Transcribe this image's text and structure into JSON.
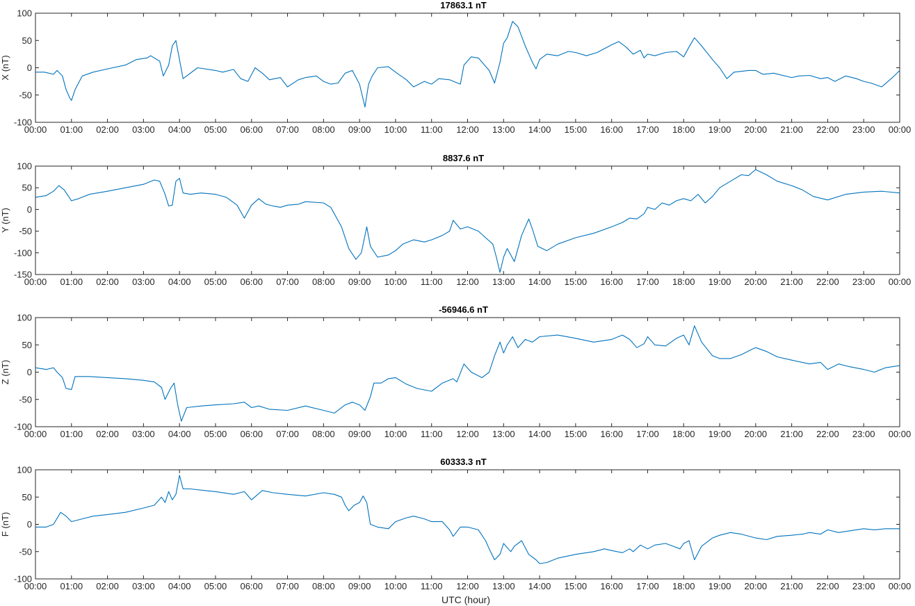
{
  "figure": {
    "xlabel": "UTC (hour)",
    "line_color": "#0072BD"
  },
  "chart_data": [
    {
      "type": "line",
      "title": "17863.1 nT",
      "xlabel": "",
      "ylabel": "X (nT)",
      "xlim": [
        0,
        24
      ],
      "ylim": [
        -100,
        100
      ],
      "xticks": [
        0,
        1,
        2,
        3,
        4,
        5,
        6,
        7,
        8,
        9,
        10,
        11,
        12,
        13,
        14,
        15,
        16,
        17,
        18,
        19,
        20,
        21,
        22,
        23,
        24
      ],
      "xtick_labels": [
        "00:00",
        "01:00",
        "02:00",
        "03:00",
        "04:00",
        "05:00",
        "06:00",
        "07:00",
        "08:00",
        "09:00",
        "10:00",
        "11:00",
        "12:00",
        "13:00",
        "14:00",
        "15:00",
        "16:00",
        "17:00",
        "18:00",
        "19:00",
        "20:00",
        "21:00",
        "22:00",
        "23:00",
        "00:00"
      ],
      "yticks": [
        -100,
        -50,
        0,
        50,
        100
      ],
      "ytick_labels": [
        "-100",
        "-50",
        "0",
        "50",
        "100"
      ],
      "series": [
        {
          "x": [
            0,
            0.25,
            0.5,
            0.6,
            0.75,
            0.85,
            0.95,
            1.0,
            1.1,
            1.3,
            1.6,
            2.0,
            2.5,
            2.8,
            3.1,
            3.2,
            3.45,
            3.55,
            3.7,
            3.8,
            3.9,
            4.1,
            4.5,
            5.0,
            5.2,
            5.5,
            5.7,
            5.9,
            6.1,
            6.3,
            6.5,
            6.8,
            7.0,
            7.3,
            7.5,
            7.8,
            8.0,
            8.2,
            8.4,
            8.6,
            8.8,
            9.0,
            9.15,
            9.25,
            9.35,
            9.5,
            9.8,
            10.0,
            10.3,
            10.5,
            10.8,
            11.0,
            11.2,
            11.5,
            11.8,
            11.9,
            12.1,
            12.3,
            12.6,
            12.75,
            12.9,
            13.0,
            13.1,
            13.25,
            13.4,
            13.6,
            13.8,
            13.9,
            14.0,
            14.2,
            14.5,
            14.8,
            15.0,
            15.3,
            15.6,
            15.8,
            16.0,
            16.2,
            16.4,
            16.6,
            16.8,
            16.9,
            17.0,
            17.2,
            17.5,
            17.8,
            18.0,
            18.15,
            18.3,
            18.5,
            18.8,
            19.0,
            19.2,
            19.4,
            19.8,
            20.0,
            20.2,
            20.5,
            21.0,
            21.2,
            21.5,
            21.8,
            22.0,
            22.2,
            22.5,
            22.8,
            23.0,
            23.2,
            23.5,
            23.8,
            24
          ],
          "y": [
            -8,
            -8,
            -12,
            -5,
            -15,
            -40,
            -55,
            -60,
            -40,
            -15,
            -8,
            -2,
            5,
            15,
            18,
            22,
            12,
            -15,
            5,
            40,
            50,
            -20,
            0,
            -5,
            -8,
            -3,
            -20,
            -25,
            0,
            -10,
            -22,
            -18,
            -35,
            -22,
            -18,
            -15,
            -25,
            -30,
            -28,
            -10,
            -5,
            -30,
            -72,
            -30,
            -15,
            0,
            2,
            -8,
            -22,
            -35,
            -25,
            -30,
            -20,
            -22,
            -30,
            5,
            20,
            18,
            -5,
            -28,
            10,
            45,
            55,
            85,
            75,
            40,
            10,
            -2,
            15,
            25,
            22,
            30,
            28,
            22,
            28,
            35,
            42,
            48,
            38,
            25,
            32,
            18,
            25,
            22,
            28,
            30,
            20,
            38,
            55,
            40,
            15,
            0,
            -20,
            -8,
            -5,
            -5,
            -12,
            -10,
            -18,
            -15,
            -14,
            -20,
            -18,
            -25,
            -15,
            -20,
            -25,
            -28,
            -35,
            -18,
            -5
          ]
        }
      ]
    },
    {
      "type": "line",
      "title": "8837.6 nT",
      "xlabel": "",
      "ylabel": "Y (nT)",
      "xlim": [
        0,
        24
      ],
      "ylim": [
        -150,
        100
      ],
      "xticks": [
        0,
        1,
        2,
        3,
        4,
        5,
        6,
        7,
        8,
        9,
        10,
        11,
        12,
        13,
        14,
        15,
        16,
        17,
        18,
        19,
        20,
        21,
        22,
        23,
        24
      ],
      "xtick_labels": [
        "00:00",
        "01:00",
        "02:00",
        "03:00",
        "04:00",
        "05:00",
        "06:00",
        "07:00",
        "08:00",
        "09:00",
        "10:00",
        "11:00",
        "12:00",
        "13:00",
        "14:00",
        "15:00",
        "16:00",
        "17:00",
        "18:00",
        "19:00",
        "20:00",
        "21:00",
        "22:00",
        "23:00",
        "00:00"
      ],
      "yticks": [
        -150,
        -100,
        -50,
        0,
        50,
        100
      ],
      "ytick_labels": [
        "-150",
        "-100",
        "-50",
        "0",
        "50",
        "100"
      ],
      "series": [
        {
          "x": [
            0,
            0.3,
            0.5,
            0.65,
            0.8,
            1.0,
            1.2,
            1.5,
            2.0,
            2.5,
            3.0,
            3.3,
            3.45,
            3.6,
            3.7,
            3.8,
            3.9,
            4.0,
            4.1,
            4.3,
            4.6,
            5.0,
            5.3,
            5.6,
            5.8,
            6.0,
            6.2,
            6.4,
            6.6,
            6.8,
            7.0,
            7.3,
            7.5,
            8.0,
            8.2,
            8.5,
            8.7,
            8.9,
            9.05,
            9.2,
            9.3,
            9.5,
            9.8,
            10.0,
            10.2,
            10.5,
            10.8,
            11.0,
            11.3,
            11.5,
            11.6,
            11.8,
            12.0,
            12.3,
            12.5,
            12.7,
            12.8,
            12.9,
            13.0,
            13.1,
            13.2,
            13.3,
            13.5,
            13.7,
            13.8,
            13.95,
            14.2,
            14.5,
            15.0,
            15.5,
            16.0,
            16.3,
            16.5,
            16.7,
            16.9,
            17.0,
            17.2,
            17.4,
            17.6,
            17.8,
            18.0,
            18.2,
            18.4,
            18.6,
            18.8,
            19.0,
            19.3,
            19.6,
            19.8,
            20.0,
            20.3,
            20.6,
            21.0,
            21.3,
            21.6,
            22.0,
            22.5,
            23.0,
            23.5,
            24
          ],
          "y": [
            28,
            32,
            42,
            55,
            45,
            20,
            25,
            35,
            42,
            50,
            58,
            68,
            65,
            35,
            8,
            10,
            65,
            72,
            38,
            35,
            38,
            35,
            28,
            10,
            -20,
            10,
            25,
            12,
            8,
            5,
            10,
            12,
            18,
            15,
            5,
            -40,
            -90,
            -115,
            -100,
            -40,
            -85,
            -110,
            -105,
            -95,
            -80,
            -70,
            -75,
            -70,
            -60,
            -50,
            -25,
            -45,
            -40,
            -50,
            -65,
            -80,
            -110,
            -145,
            -110,
            -90,
            -105,
            -120,
            -60,
            -22,
            -45,
            -85,
            -95,
            -80,
            -65,
            -55,
            -40,
            -30,
            -20,
            -22,
            -10,
            5,
            0,
            15,
            10,
            20,
            25,
            20,
            35,
            15,
            30,
            50,
            65,
            80,
            78,
            92,
            80,
            65,
            55,
            45,
            30,
            22,
            35,
            40,
            42,
            38
          ]
        }
      ]
    },
    {
      "type": "line",
      "title": "-56946.6 nT",
      "xlabel": "",
      "ylabel": "Z (nT)",
      "xlim": [
        0,
        24
      ],
      "ylim": [
        -100,
        100
      ],
      "xticks": [
        0,
        1,
        2,
        3,
        4,
        5,
        6,
        7,
        8,
        9,
        10,
        11,
        12,
        13,
        14,
        15,
        16,
        17,
        18,
        19,
        20,
        21,
        22,
        23,
        24
      ],
      "xtick_labels": [
        "00:00",
        "01:00",
        "02:00",
        "03:00",
        "04:00",
        "05:00",
        "06:00",
        "07:00",
        "08:00",
        "09:00",
        "10:00",
        "11:00",
        "12:00",
        "13:00",
        "14:00",
        "15:00",
        "16:00",
        "17:00",
        "18:00",
        "19:00",
        "20:00",
        "21:00",
        "22:00",
        "23:00",
        "00:00"
      ],
      "yticks": [
        -100,
        -50,
        0,
        50,
        100
      ],
      "ytick_labels": [
        "-100",
        "-50",
        "0",
        "50",
        "100"
      ],
      "series": [
        {
          "x": [
            0,
            0.3,
            0.5,
            0.6,
            0.75,
            0.85,
            1.0,
            1.1,
            1.5,
            2.0,
            2.5,
            3.0,
            3.3,
            3.5,
            3.6,
            3.75,
            3.85,
            3.95,
            4.05,
            4.2,
            4.6,
            5.0,
            5.5,
            5.8,
            6.0,
            6.2,
            6.5,
            7.0,
            7.5,
            8.0,
            8.3,
            8.6,
            8.8,
            9.0,
            9.15,
            9.3,
            9.4,
            9.6,
            9.8,
            10.0,
            10.3,
            10.6,
            11.0,
            11.3,
            11.6,
            11.7,
            11.9,
            12.1,
            12.4,
            12.6,
            12.75,
            12.9,
            13.0,
            13.1,
            13.25,
            13.4,
            13.6,
            13.8,
            14.0,
            14.5,
            15.0,
            15.5,
            16.0,
            16.3,
            16.5,
            16.7,
            16.9,
            17.0,
            17.2,
            17.5,
            17.8,
            18.0,
            18.15,
            18.3,
            18.5,
            18.8,
            19.0,
            19.3,
            19.6,
            19.9,
            20.0,
            20.3,
            20.6,
            21.0,
            21.5,
            21.8,
            22.0,
            22.3,
            22.6,
            23.0,
            23.3,
            23.6,
            24
          ],
          "y": [
            8,
            5,
            8,
            0,
            -10,
            -30,
            -32,
            -8,
            -8,
            -10,
            -12,
            -15,
            -18,
            -28,
            -50,
            -30,
            -20,
            -60,
            -90,
            -65,
            -62,
            -60,
            -58,
            -55,
            -65,
            -62,
            -68,
            -70,
            -62,
            -70,
            -75,
            -60,
            -55,
            -60,
            -70,
            -45,
            -20,
            -20,
            -12,
            -10,
            -22,
            -30,
            -35,
            -20,
            -12,
            -18,
            15,
            0,
            -10,
            0,
            30,
            55,
            35,
            50,
            65,
            45,
            60,
            55,
            65,
            68,
            62,
            55,
            60,
            68,
            60,
            45,
            52,
            65,
            50,
            48,
            62,
            68,
            50,
            85,
            55,
            30,
            25,
            25,
            32,
            42,
            45,
            38,
            28,
            22,
            15,
            18,
            5,
            15,
            10,
            5,
            0,
            8,
            12
          ]
        }
      ]
    },
    {
      "type": "line",
      "title": "60333.3 nT",
      "xlabel": "UTC (hour)",
      "ylabel": "F (nT)",
      "xlim": [
        0,
        24
      ],
      "ylim": [
        -100,
        100
      ],
      "xticks": [
        0,
        1,
        2,
        3,
        4,
        5,
        6,
        7,
        8,
        9,
        10,
        11,
        12,
        13,
        14,
        15,
        16,
        17,
        18,
        19,
        20,
        21,
        22,
        23,
        24
      ],
      "xtick_labels": [
        "00:00",
        "01:00",
        "02:00",
        "03:00",
        "04:00",
        "05:00",
        "06:00",
        "07:00",
        "08:00",
        "09:00",
        "10:00",
        "11:00",
        "12:00",
        "13:00",
        "14:00",
        "15:00",
        "16:00",
        "17:00",
        "18:00",
        "19:00",
        "20:00",
        "21:00",
        "22:00",
        "23:00",
        "00:00"
      ],
      "yticks": [
        -100,
        -50,
        0,
        50,
        100
      ],
      "ytick_labels": [
        "-100",
        "-50",
        "0",
        "50",
        "100"
      ],
      "series": [
        {
          "x": [
            0,
            0.3,
            0.5,
            0.7,
            0.85,
            1.0,
            1.3,
            1.6,
            2.0,
            2.5,
            3.0,
            3.3,
            3.5,
            3.6,
            3.7,
            3.8,
            3.9,
            4.0,
            4.1,
            4.3,
            4.7,
            5.0,
            5.5,
            5.8,
            6.0,
            6.3,
            6.6,
            7.0,
            7.5,
            8.0,
            8.3,
            8.5,
            8.6,
            8.7,
            8.85,
            9.0,
            9.1,
            9.2,
            9.3,
            9.5,
            9.8,
            10.0,
            10.3,
            10.5,
            10.8,
            11.0,
            11.3,
            11.5,
            11.6,
            11.8,
            12.0,
            12.3,
            12.5,
            12.6,
            12.75,
            12.9,
            13.0,
            13.2,
            13.3,
            13.5,
            13.7,
            13.9,
            14.0,
            14.2,
            14.5,
            15.0,
            15.5,
            15.8,
            16.0,
            16.3,
            16.5,
            16.6,
            16.8,
            17.0,
            17.2,
            17.5,
            17.7,
            17.9,
            18.0,
            18.15,
            18.3,
            18.5,
            18.8,
            19.0,
            19.3,
            19.6,
            20.0,
            20.3,
            20.6,
            21.0,
            21.3,
            21.5,
            21.8,
            22.0,
            22.3,
            22.6,
            23.0,
            23.3,
            23.6,
            24
          ],
          "y": [
            -5,
            -5,
            0,
            22,
            15,
            5,
            10,
            15,
            18,
            22,
            30,
            35,
            50,
            40,
            60,
            45,
            55,
            90,
            65,
            65,
            62,
            60,
            55,
            60,
            45,
            62,
            58,
            55,
            52,
            58,
            55,
            50,
            35,
            25,
            35,
            40,
            52,
            40,
            0,
            -5,
            -8,
            5,
            12,
            15,
            10,
            5,
            5,
            -10,
            -22,
            -5,
            -5,
            -10,
            -30,
            -45,
            -65,
            -55,
            -35,
            -50,
            -40,
            -30,
            -55,
            -65,
            -72,
            -70,
            -62,
            -55,
            -50,
            -45,
            -48,
            -52,
            -45,
            -50,
            -38,
            -45,
            -38,
            -35,
            -40,
            -45,
            -35,
            -30,
            -65,
            -40,
            -25,
            -20,
            -15,
            -18,
            -25,
            -28,
            -22,
            -20,
            -18,
            -15,
            -18,
            -10,
            -15,
            -12,
            -8,
            -10,
            -8,
            -8
          ]
        }
      ]
    }
  ]
}
